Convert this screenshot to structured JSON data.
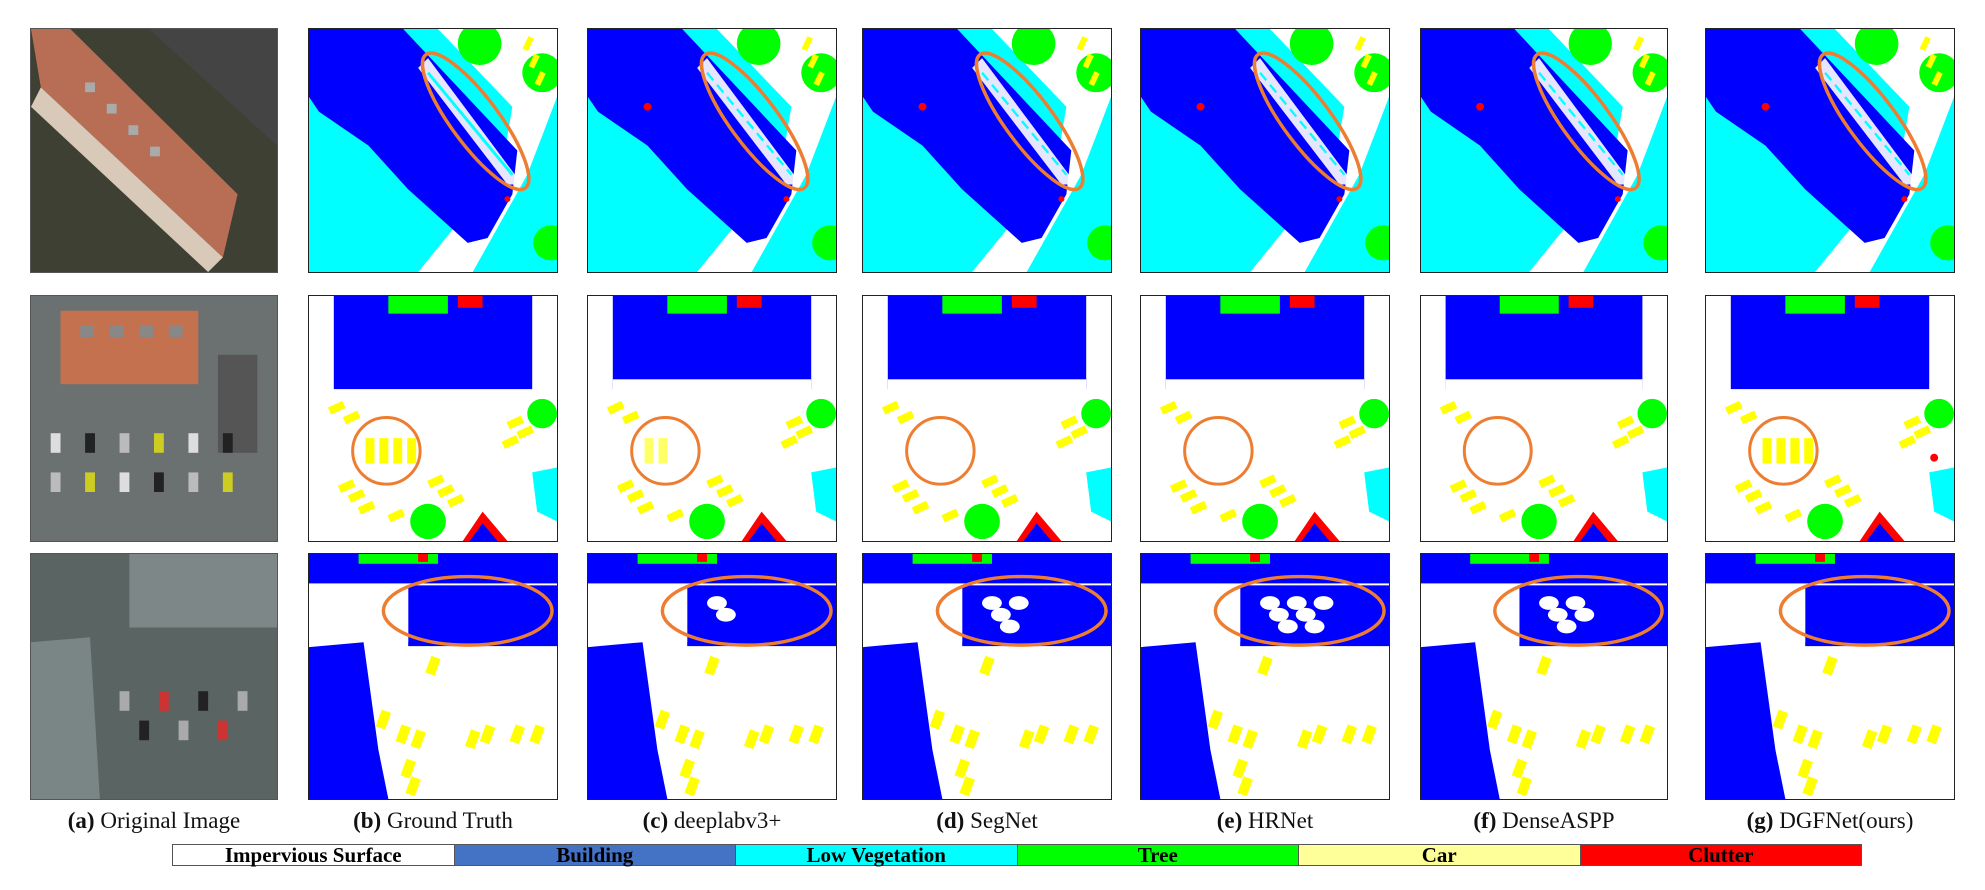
{
  "colors": {
    "impervious": "#ffffff",
    "building": "#0000ff",
    "low_veg": "#00ffff",
    "tree": "#00ff00",
    "car": "#ffff00",
    "clutter": "#ff0000",
    "highlight": "#ed7d31"
  },
  "columns": [
    {
      "id": "a",
      "letter": "(a)",
      "label": "Original Image"
    },
    {
      "id": "b",
      "letter": "(b)",
      "label": "Ground Truth"
    },
    {
      "id": "c",
      "letter": "(c)",
      "label": "deeplabv3+"
    },
    {
      "id": "d",
      "letter": "(d)",
      "label": "SegNet"
    },
    {
      "id": "e",
      "letter": "(e)",
      "label": "HRNet"
    },
    {
      "id": "f",
      "letter": "(f)",
      "label": "DenseASPP"
    },
    {
      "id": "g",
      "letter": "(g)",
      "label": "DGFNet(ours)"
    }
  ],
  "legend": [
    {
      "label": "Impervious Surface",
      "bg": "#ffffff",
      "fg": "#000000"
    },
    {
      "label": "Building",
      "bg": "#4472c4",
      "fg": "#000000"
    },
    {
      "label": "Low Vegetation",
      "bg": "#00ffff",
      "fg": "#000000"
    },
    {
      "label": "Tree",
      "bg": "#00ff00",
      "fg": "#000000"
    },
    {
      "label": "Car",
      "bg": "#ffff99",
      "fg": "#000000"
    },
    {
      "label": "Clutter",
      "bg": "#ff0000",
      "fg": "#000000"
    }
  ]
}
